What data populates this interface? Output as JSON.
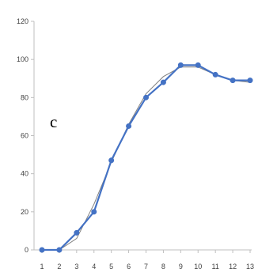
{
  "chart_data": {
    "type": "line",
    "panel_label": "c",
    "x": [
      1,
      2,
      3,
      4,
      5,
      6,
      7,
      8,
      9,
      10,
      11,
      12,
      13
    ],
    "series": [
      {
        "values": [
          0,
          0,
          9,
          20,
          47,
          65,
          80,
          88,
          97,
          97,
          92,
          89,
          89
        ],
        "color": "#4472C4",
        "marker": "circle"
      }
    ],
    "trendline": {
      "values": [
        0,
        0,
        6,
        24,
        46,
        66,
        82,
        91,
        96,
        96,
        92,
        89,
        88
      ],
      "color": "#808080"
    },
    "ylim": [
      0,
      120
    ],
    "yticks": [
      0,
      20,
      40,
      60,
      80,
      100,
      120
    ],
    "xticks": [
      1,
      2,
      3,
      4,
      5,
      6,
      7,
      8,
      9,
      10,
      11,
      12,
      13
    ],
    "grid": false,
    "legend": "none",
    "axis_color": "#BFBFBF"
  }
}
